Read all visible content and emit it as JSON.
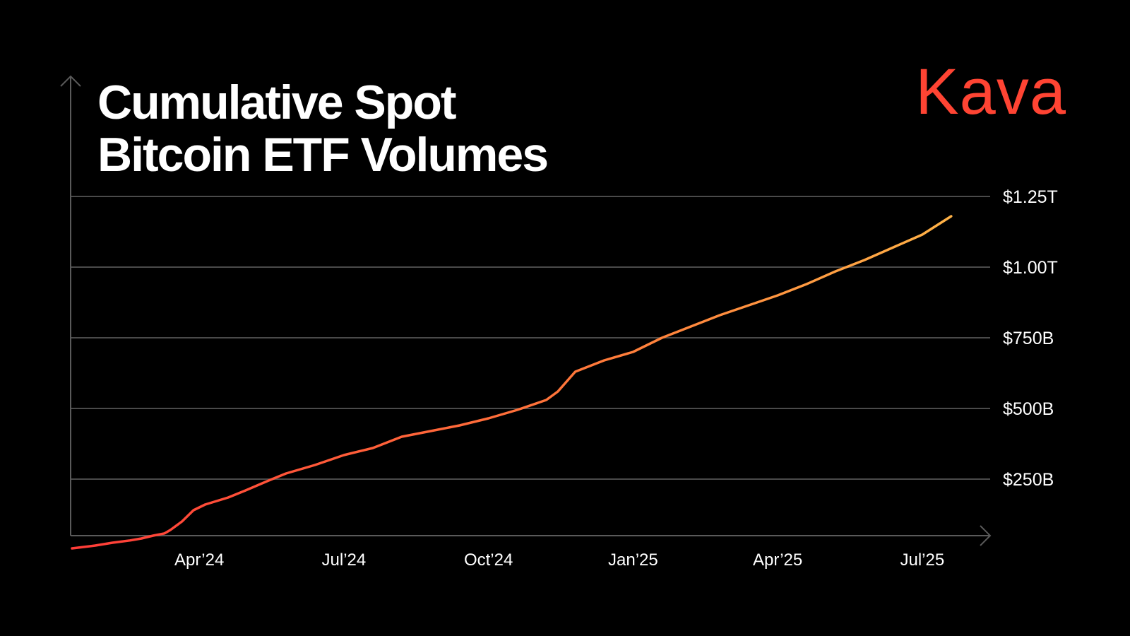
{
  "brand": {
    "name": "Kava",
    "color": "#ff4433"
  },
  "chart_data": {
    "type": "line",
    "title": [
      "Cumulative Spot",
      "Bitcoin ETF Volumes"
    ],
    "xlabel": "",
    "ylabel": "",
    "ylim": [
      0,
      1250
    ],
    "yunit": "billions USD",
    "yticks": [
      {
        "value": 250,
        "label": "$250B"
      },
      {
        "value": 500,
        "label": "$500B"
      },
      {
        "value": 750,
        "label": "$750B"
      },
      {
        "value": 1000,
        "label": "$1.00T"
      },
      {
        "value": 1250,
        "label": "$1.25T"
      }
    ],
    "xticks": [
      {
        "value": 2024.25,
        "label": "Apr’24"
      },
      {
        "value": 2024.5,
        "label": "Jul’24"
      },
      {
        "value": 2024.75,
        "label": "Oct’24"
      },
      {
        "value": 2025.0,
        "label": "Jan’25"
      },
      {
        "value": 2025.25,
        "label": "Apr’25"
      },
      {
        "value": 2025.5,
        "label": "Jul’25"
      }
    ],
    "xlim": [
      2024.03,
      2025.56
    ],
    "grid": true,
    "line_gradient": [
      "#ff3c38",
      "#ff7a3a",
      "#ffb347"
    ],
    "series": [
      {
        "name": "Cumulative Spot Bitcoin ETF Volumes",
        "x": [
          2024.03,
          2024.07,
          2024.1,
          2024.13,
          2024.15,
          2024.17,
          2024.19,
          2024.2,
          2024.22,
          2024.24,
          2024.26,
          2024.3,
          2024.33,
          2024.37,
          2024.4,
          2024.45,
          2024.5,
          2024.55,
          2024.6,
          2024.65,
          2024.7,
          2024.75,
          2024.8,
          2024.85,
          2024.87,
          2024.9,
          2024.95,
          2025.0,
          2025.05,
          2025.1,
          2025.15,
          2025.2,
          2025.25,
          2025.3,
          2025.35,
          2025.4,
          2025.45,
          2025.5,
          2025.55
        ],
        "y": [
          5,
          15,
          25,
          33,
          40,
          50,
          58,
          70,
          100,
          140,
          160,
          185,
          210,
          245,
          270,
          300,
          335,
          360,
          400,
          420,
          440,
          465,
          495,
          530,
          560,
          630,
          670,
          700,
          750,
          790,
          830,
          865,
          900,
          940,
          985,
          1025,
          1070,
          1115,
          1180
        ]
      }
    ]
  }
}
